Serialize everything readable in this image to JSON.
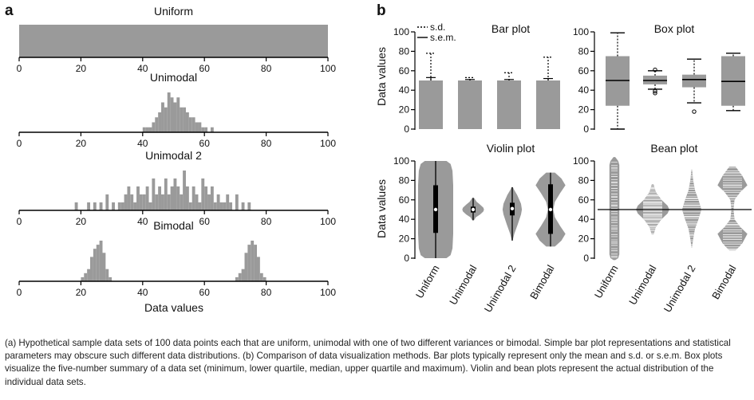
{
  "panel_a": {
    "letter": "a",
    "xlabel": "Data values"
  },
  "panel_b": {
    "letter": "b",
    "ylabel": "Data values"
  },
  "caption": {
    "a_mark": "a",
    "a_text": " Hypothetical sample data sets of 100 data points each that are uniform, unimodal with one of two different variances or bimodal. Simple bar plot representations and statistical parameters may obscure such different data distributions. (",
    "b_mark": "b",
    "b_text": ") Comparison of data visualization methods. Bar plots typically represent only the mean and s.d. or s.e.m. Box plots visualize the five-number summary of a data set (minimum, lower quartile, median, upper quartile and maximum). Violin and bean plots represent the actual distribution of the individual data sets."
  },
  "colors": {
    "fill": "#9a9a9a",
    "axis": "#000000",
    "bean_line": "#ffffff"
  },
  "chart_data": [
    {
      "type": "bar",
      "title": "Uniform",
      "xlabel": "",
      "ylabel": "",
      "xlim": [
        0,
        100
      ],
      "xticks": [
        0,
        20,
        40,
        60,
        80,
        100
      ],
      "uniform_range": [
        0,
        100
      ],
      "bins": [],
      "counts": []
    },
    {
      "type": "bar",
      "title": "Unimodal",
      "xlabel": "",
      "ylabel": "",
      "xlim": [
        0,
        100
      ],
      "xticks": [
        0,
        20,
        40,
        60,
        80,
        100
      ],
      "bins": [
        40,
        41,
        42,
        43,
        44,
        45,
        46,
        47,
        48,
        49,
        50,
        51,
        52,
        53,
        54,
        55,
        56,
        57,
        58,
        59,
        60,
        61,
        62
      ],
      "counts": [
        1,
        1,
        1,
        2,
        3,
        4,
        6,
        5,
        8,
        7,
        6,
        7,
        5,
        5,
        4,
        3,
        3,
        2,
        2,
        1,
        1,
        0,
        1
      ]
    },
    {
      "type": "bar",
      "title": "Unimodal 2",
      "xlabel": "",
      "ylabel": "",
      "xlim": [
        0,
        100
      ],
      "xticks": [
        0,
        20,
        40,
        60,
        80,
        100
      ],
      "bins": [
        18,
        22,
        24,
        26,
        28,
        30,
        32,
        33,
        34,
        35,
        36,
        37,
        38,
        39,
        40,
        41,
        42,
        43,
        44,
        45,
        46,
        47,
        48,
        49,
        50,
        51,
        52,
        53,
        54,
        55,
        56,
        57,
        58,
        59,
        60,
        61,
        62,
        63,
        64,
        65,
        66,
        67,
        68,
        70,
        72,
        74
      ],
      "counts": [
        1,
        1,
        1,
        1,
        2,
        1,
        1,
        1,
        2,
        3,
        2,
        1,
        3,
        2,
        2,
        3,
        1,
        4,
        2,
        3,
        2,
        4,
        2,
        3,
        4,
        3,
        2,
        5,
        3,
        1,
        3,
        2,
        1,
        4,
        3,
        2,
        3,
        1,
        2,
        1,
        1,
        2,
        1,
        2,
        1,
        1
      ]
    },
    {
      "type": "bar",
      "title": "Bimodal",
      "xlabel": "Data values",
      "ylabel": "",
      "xlim": [
        0,
        100
      ],
      "xticks": [
        0,
        20,
        40,
        60,
        80,
        100
      ],
      "bins": [
        20,
        21,
        22,
        23,
        24,
        25,
        26,
        27,
        28,
        29,
        70,
        71,
        72,
        73,
        74,
        75,
        76,
        77,
        78,
        79
      ],
      "counts": [
        1,
        2,
        3,
        6,
        8,
        9,
        10,
        7,
        3,
        1,
        1,
        2,
        3,
        7,
        9,
        10,
        9,
        6,
        2,
        1
      ]
    },
    {
      "type": "bar",
      "title": "Bar plot",
      "ylabel": "Data values",
      "ylim": [
        0,
        100
      ],
      "yticks": [
        0,
        20,
        40,
        60,
        80,
        100
      ],
      "categories": [
        "Uniform",
        "Unimodal",
        "Unimodal 2",
        "Bimodal"
      ],
      "legend": [
        "s.d.",
        "s.e.m."
      ],
      "legend_position": "top-left",
      "series": [
        {
          "name": "mean",
          "values": [
            50,
            50,
            50,
            50
          ]
        },
        {
          "name": "s.d.",
          "values": [
            78,
            53,
            58,
            74
          ]
        },
        {
          "name": "s.e.m.",
          "values": [
            53,
            51,
            51,
            52
          ]
        }
      ]
    },
    {
      "type": "box",
      "title": "Box plot",
      "ylim": [
        0,
        100
      ],
      "yticks": [
        0,
        20,
        40,
        60,
        80,
        100
      ],
      "categories": [
        "Uniform",
        "Unimodal",
        "Unimodal 2",
        "Bimodal"
      ],
      "boxes": [
        {
          "min": 0,
          "q1": 24,
          "median": 50,
          "q3": 75,
          "max": 99,
          "outliers": []
        },
        {
          "min": 41,
          "q1": 46,
          "median": 50,
          "q3": 55,
          "max": 60,
          "outliers": [
            37,
            39,
            61
          ]
        },
        {
          "min": 27,
          "q1": 43,
          "median": 51,
          "q3": 56,
          "max": 72,
          "outliers": [
            18
          ]
        },
        {
          "min": 19,
          "q1": 24,
          "median": 49,
          "q3": 75,
          "max": 78,
          "outliers": []
        }
      ]
    },
    {
      "type": "violin",
      "title": "Violin plot",
      "ylabel": "Data values",
      "ylim": [
        0,
        100
      ],
      "yticks": [
        0,
        20,
        40,
        60,
        80,
        100
      ],
      "categories": [
        "Uniform",
        "Unimodal",
        "Unimodal 2",
        "Bimodal"
      ],
      "violins": [
        {
          "min": 0,
          "max": 100,
          "q1": 26,
          "median": 50,
          "q3": 75,
          "density": [
            [
              0,
              0.62
            ],
            [
              3,
              0.85
            ],
            [
              10,
              0.96
            ],
            [
              25,
              1.0
            ],
            [
              50,
              1.0
            ],
            [
              75,
              1.0
            ],
            [
              90,
              0.96
            ],
            [
              97,
              0.85
            ],
            [
              100,
              0.62
            ]
          ]
        },
        {
          "min": 39,
          "max": 62,
          "q1": 47,
          "median": 50,
          "q3": 53,
          "density": [
            [
              39,
              0.05
            ],
            [
              42,
              0.15
            ],
            [
              45,
              0.4
            ],
            [
              48,
              0.58
            ],
            [
              50,
              0.62
            ],
            [
              52,
              0.58
            ],
            [
              55,
              0.4
            ],
            [
              58,
              0.2
            ],
            [
              62,
              0.05
            ]
          ]
        },
        {
          "min": 18,
          "max": 73,
          "q1": 44,
          "median": 51,
          "q3": 57,
          "density": [
            [
              18,
              0.02
            ],
            [
              25,
              0.12
            ],
            [
              35,
              0.32
            ],
            [
              45,
              0.5
            ],
            [
              50,
              0.55
            ],
            [
              56,
              0.5
            ],
            [
              65,
              0.28
            ],
            [
              70,
              0.12
            ],
            [
              73,
              0.03
            ]
          ]
        },
        {
          "min": 12,
          "max": 88,
          "q1": 25,
          "median": 50,
          "q3": 76,
          "density": [
            [
              12,
              0.25
            ],
            [
              18,
              0.62
            ],
            [
              25,
              0.85
            ],
            [
              33,
              0.55
            ],
            [
              42,
              0.25
            ],
            [
              50,
              0.15
            ],
            [
              58,
              0.25
            ],
            [
              67,
              0.55
            ],
            [
              75,
              0.85
            ],
            [
              82,
              0.62
            ],
            [
              88,
              0.25
            ]
          ]
        }
      ]
    },
    {
      "type": "bean",
      "title": "Bean plot",
      "ylim": [
        0,
        100
      ],
      "yticks": [
        0,
        20,
        40,
        60,
        80,
        100
      ],
      "categories": [
        "Uniform",
        "Unimodal",
        "Unimodal 2",
        "Bimodal"
      ],
      "overall_mean": 50,
      "beans": [
        {
          "min": 0,
          "max": 104,
          "density": [
            [
              -2,
              0.05
            ],
            [
              0,
              0.22
            ],
            [
              4,
              0.28
            ],
            [
              50,
              0.28
            ],
            [
              96,
              0.28
            ],
            [
              100,
              0.22
            ],
            [
              104,
              0.05
            ]
          ]
        },
        {
          "min": 24,
          "max": 76,
          "density": [
            [
              24,
              0.05
            ],
            [
              32,
              0.18
            ],
            [
              40,
              0.5
            ],
            [
              46,
              0.85
            ],
            [
              50,
              0.95
            ],
            [
              54,
              0.85
            ],
            [
              60,
              0.5
            ],
            [
              68,
              0.18
            ],
            [
              76,
              0.05
            ]
          ]
        },
        {
          "min": 11,
          "max": 91,
          "density": [
            [
              11,
              0.02
            ],
            [
              20,
              0.08
            ],
            [
              30,
              0.18
            ],
            [
              40,
              0.38
            ],
            [
              50,
              0.55
            ],
            [
              60,
              0.38
            ],
            [
              70,
              0.18
            ],
            [
              80,
              0.08
            ],
            [
              91,
              0.02
            ]
          ]
        },
        {
          "min": 8,
          "max": 94,
          "density": [
            [
              8,
              0.18
            ],
            [
              15,
              0.55
            ],
            [
              25,
              0.85
            ],
            [
              32,
              0.45
            ],
            [
              40,
              0.12
            ],
            [
              50,
              0.06
            ],
            [
              60,
              0.12
            ],
            [
              68,
              0.45
            ],
            [
              75,
              0.85
            ],
            [
              85,
              0.55
            ],
            [
              94,
              0.18
            ]
          ]
        }
      ]
    }
  ]
}
